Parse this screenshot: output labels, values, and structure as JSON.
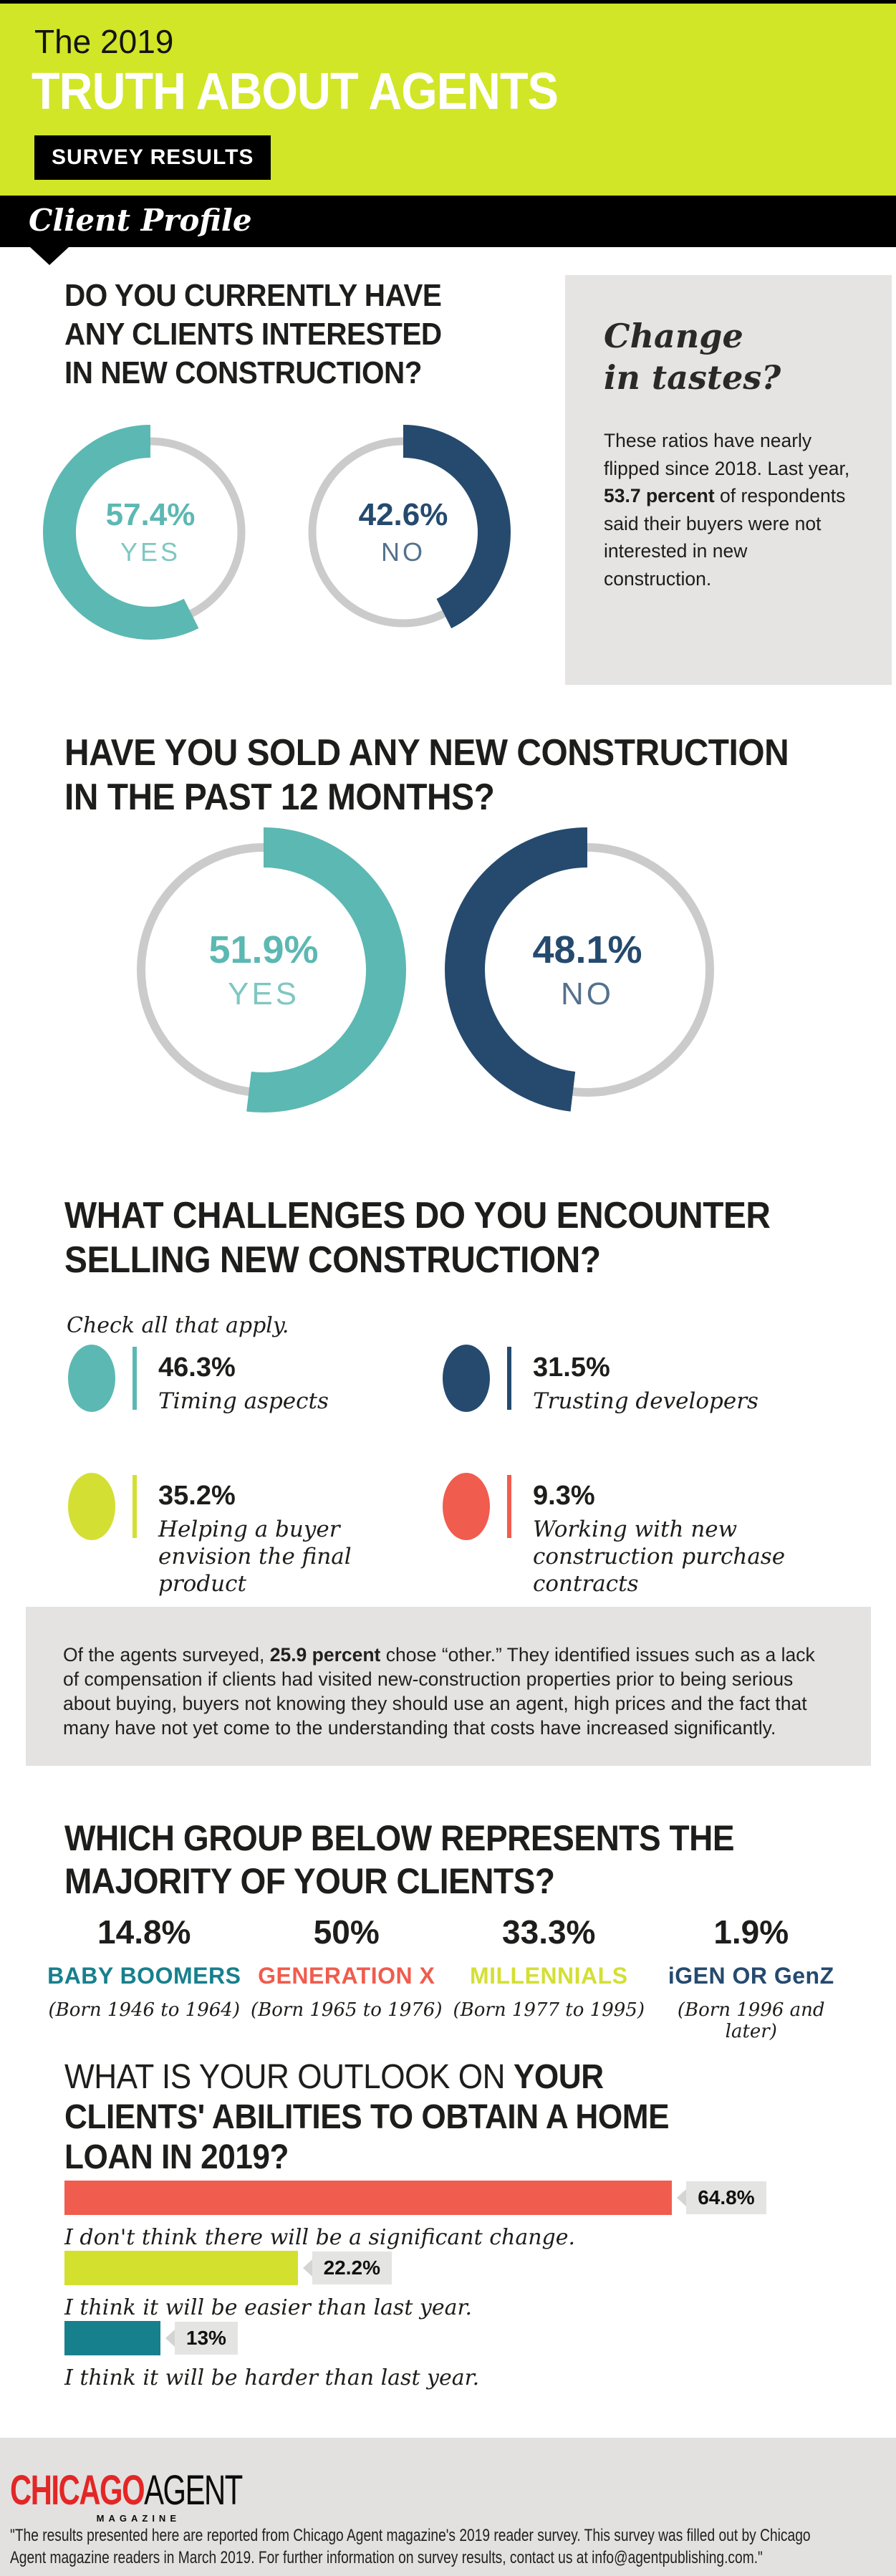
{
  "theme": {
    "lime": "#d1e626",
    "teal": "#5cb8b2",
    "teal_dark": "#17808d",
    "navy": "#254a6e",
    "coral": "#f05c4d",
    "lime_chart": "#d4df34",
    "gray_box": "#e5e4e3",
    "gray_ring": "#cbcbcb",
    "chip_bg": "#e4e4e3",
    "footer_bg": "#e2e1e0",
    "logo_red": "#e32726",
    "black": "#1d1d1b"
  },
  "header": {
    "kicker": "The 2019",
    "title": "TRUTH ABOUT AGENTS",
    "badge": "SURVEY RESULTS",
    "section_tab": "Client Profile"
  },
  "q1": {
    "title_lines": [
      "DO YOU CURRENTLY HAVE",
      "ANY CLIENTS INTERESTED",
      "IN NEW CONSTRUCTION?"
    ],
    "donuts": [
      {
        "value_label": "57.4%",
        "answer": "YES",
        "percent": 57.4,
        "color": "#5cb8b2",
        "direction": "ccw"
      },
      {
        "value_label": "42.6%",
        "answer": "NO",
        "percent": 42.6,
        "color": "#254a6e",
        "direction": "cw"
      }
    ],
    "sidebar": {
      "title_lines": [
        "Change",
        "in tastes?"
      ],
      "body_prefix": "These ratios have nearly flipped since 2018. Last year, ",
      "body_bold": "53.7 percent",
      "body_suffix": " of respondents said their buyers were not interested in new construction."
    }
  },
  "q2": {
    "title_lines": [
      "HAVE YOU SOLD ANY NEW CONSTRUCTION",
      "IN THE PAST 12 MONTHS?"
    ],
    "donuts": [
      {
        "value_label": "51.9%",
        "answer": "YES",
        "percent": 51.9,
        "color": "#5cb8b2",
        "direction": "cw"
      },
      {
        "value_label": "48.1%",
        "answer": "NO",
        "percent": 48.1,
        "color": "#254a6e",
        "direction": "ccw"
      }
    ]
  },
  "q3": {
    "title_lines": [
      "WHAT CHALLENGES DO YOU ENCOUNTER",
      "SELLING NEW CONSTRUCTION?"
    ],
    "note": "Check all that apply.",
    "items": [
      {
        "pct": "46.3%",
        "label": "Timing aspects",
        "color": "#5cb8b2"
      },
      {
        "pct": "31.5%",
        "label": "Trusting developers",
        "color": "#254a6e"
      },
      {
        "pct": "35.2%",
        "label": "Helping a buyer envision the final product",
        "color": "#d4df34"
      },
      {
        "pct": "9.3%",
        "label": "Working with new construction purchase contracts",
        "color": "#f05c4d"
      }
    ]
  },
  "other_note": {
    "prefix": "Of the agents surveyed, ",
    "bold": "25.9 percent",
    "suffix": " chose “other.” They identified issues such as a lack of compensation if clients had visited new-construction properties prior to being serious about buying, buyers not knowing they should use an agent, high prices and the fact that many have not yet come to the understanding that costs have increased significantly."
  },
  "q4": {
    "title_lines": [
      "WHICH GROUP BELOW REPRESENTS THE",
      "MAJORITY OF YOUR CLIENTS?"
    ],
    "groups": [
      {
        "pct": "14.8%",
        "name": "BABY BOOMERS",
        "born": "(Born 1946 to 1964)",
        "color": "#17808d"
      },
      {
        "pct": "50%",
        "name": "GENERATION X",
        "born": "(Born 1965 to 1976)",
        "color": "#f05c4d"
      },
      {
        "pct": "33.3%",
        "name": "MILLENNIALS",
        "born": "(Born 1977 to 1995)",
        "color": "#d4df34"
      },
      {
        "pct": "1.9%",
        "name": "iGEN OR GenZ",
        "born": "(Born 1996 and later)",
        "color": "#254a6e"
      }
    ]
  },
  "q5": {
    "title_line1_light": "WHAT IS YOUR OUTLOOK ON ",
    "title_line1_bold": "YOUR",
    "title_lines_bold": [
      "CLIENTS' ABILITIES TO OBTAIN A HOME",
      "LOAN IN 2019?"
    ],
    "bars": [
      {
        "value_label": "64.8%",
        "percent": 64.8,
        "width_pct": 79.2,
        "color": "#f05c4d",
        "caption": "I don't think there will be a significant change."
      },
      {
        "value_label": "22.2%",
        "percent": 22.2,
        "width_pct": 30.4,
        "color": "#d4e02e",
        "caption": "I think it will be easier than last year."
      },
      {
        "value_label": "13%",
        "percent": 13,
        "width_pct": 12.5,
        "color": "#17808d",
        "caption": "I think it will be harder than last year."
      }
    ]
  },
  "footer": {
    "logo_red": "CHICAGO",
    "logo_black": "AGENT",
    "logo_sub": "MAGAZINE",
    "disclaimer_lines": [
      "\"The results presented here are reported from Chicago Agent magazine's 2019 reader survey. This survey was filled out by Chicago",
      "Agent magazine readers in March 2019. For further information on survey results, contact us at info@agentpublishing.com.\""
    ]
  },
  "chart_data": [
    {
      "type": "pie",
      "title": "DO YOU CURRENTLY HAVE ANY CLIENTS INTERESTED IN NEW CONSTRUCTION?",
      "categories": [
        "YES",
        "NO"
      ],
      "values": [
        57.4,
        42.6
      ],
      "colors": [
        "#5cb8b2",
        "#254a6e"
      ],
      "annotation": "These ratios have nearly flipped since 2018. Last year, 53.7 percent of respondents said their buyers were not interested in new construction."
    },
    {
      "type": "pie",
      "title": "HAVE YOU SOLD ANY NEW CONSTRUCTION IN THE PAST 12 MONTHS?",
      "categories": [
        "YES",
        "NO"
      ],
      "values": [
        51.9,
        48.1
      ],
      "colors": [
        "#5cb8b2",
        "#254a6e"
      ]
    },
    {
      "type": "bar",
      "title": "WHAT CHALLENGES DO YOU ENCOUNTER SELLING NEW CONSTRUCTION?",
      "note": "Check all that apply (multi-select)",
      "categories": [
        "Timing aspects",
        "Trusting developers",
        "Helping a buyer envision the final product",
        "Working with new construction purchase contracts",
        "Other"
      ],
      "values": [
        46.3,
        31.5,
        35.2,
        9.3,
        25.9
      ],
      "colors": [
        "#5cb8b2",
        "#254a6e",
        "#d4df34",
        "#f05c4d",
        null
      ]
    },
    {
      "type": "bar",
      "title": "WHICH GROUP BELOW REPRESENTS THE MAJORITY OF YOUR CLIENTS?",
      "categories": [
        "Baby Boomers (Born 1946 to 1964)",
        "Generation X (Born 1965 to 1976)",
        "Millennials (Born 1977 to 1995)",
        "iGen or GenZ (Born 1996 and later)"
      ],
      "values": [
        14.8,
        50,
        33.3,
        1.9
      ]
    },
    {
      "type": "bar",
      "title": "WHAT IS YOUR OUTLOOK ON YOUR CLIENTS' ABILITIES TO OBTAIN A HOME LOAN IN 2019?",
      "categories": [
        "I don't think there will be a significant change.",
        "I think it will be easier than last year.",
        "I think it will be harder than last year."
      ],
      "values": [
        64.8,
        22.2,
        13
      ],
      "xlim": [
        0,
        100
      ]
    }
  ]
}
